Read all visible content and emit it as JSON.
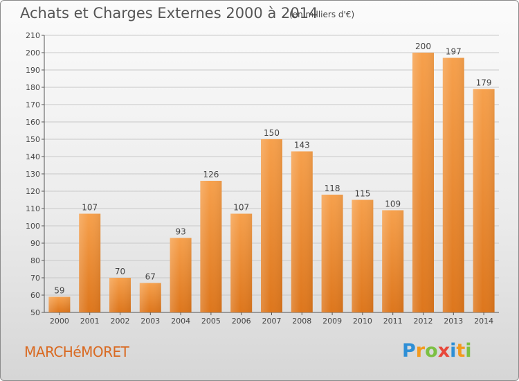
{
  "title": "Achats et Charges Externes 2000 à 2014",
  "subtitle": "(en milliers d'€)",
  "place": "MARCHéMORET",
  "logo": {
    "text": "Proxiti",
    "letters": [
      {
        "ch": "P",
        "color": "#2e8fd6"
      },
      {
        "ch": "r",
        "color": "#f39a1e"
      },
      {
        "ch": "o",
        "color": "#7cc043"
      },
      {
        "ch": "x",
        "color": "#e8473a"
      },
      {
        "ch": "i",
        "color": "#2e8fd6"
      },
      {
        "ch": "t",
        "color": "#f39a1e"
      },
      {
        "ch": "i",
        "color": "#7cc043"
      }
    ]
  },
  "colors": {
    "bar_top": "#f6a04c",
    "bar_bottom": "#dd761c",
    "grid": "#c8c8c8"
  },
  "chart_data": {
    "type": "bar",
    "categories": [
      "2000",
      "2001",
      "2002",
      "2003",
      "2004",
      "2005",
      "2006",
      "2007",
      "2008",
      "2009",
      "2010",
      "2011",
      "2012",
      "2013",
      "2014"
    ],
    "values": [
      59,
      107,
      70,
      67,
      93,
      126,
      107,
      150,
      143,
      118,
      115,
      109,
      200,
      197,
      179
    ],
    "ylim": [
      50,
      210
    ],
    "yticks": [
      50,
      60,
      70,
      80,
      90,
      100,
      110,
      120,
      130,
      140,
      150,
      160,
      170,
      180,
      190,
      200,
      210
    ],
    "grid": true
  }
}
